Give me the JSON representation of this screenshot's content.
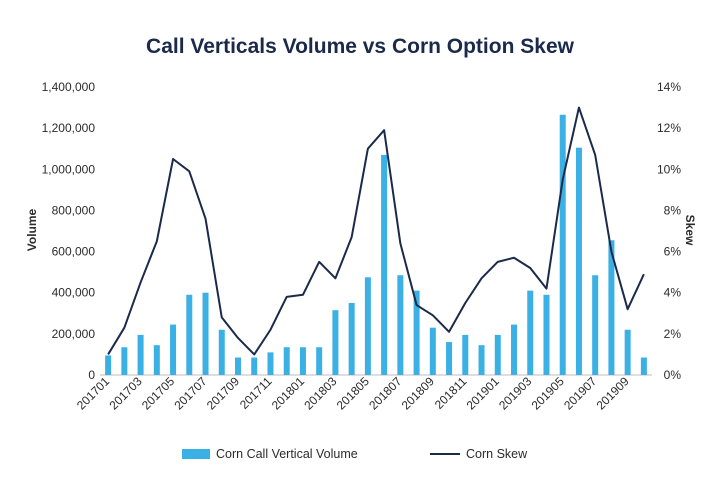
{
  "chart_data": {
    "type": "bar",
    "title": "Call Verticals Volume vs Corn Option Skew",
    "ylabel": "Volume",
    "y2label": "Skew",
    "ylim": [
      0,
      1400000
    ],
    "y2lim": [
      0,
      14
    ],
    "y_ticks": [
      "0",
      "200,000",
      "400,000",
      "600,000",
      "800,000",
      "1,000,000",
      "1,200,000",
      "1,400,000"
    ],
    "y2_ticks": [
      "0%",
      "2%",
      "4%",
      "6%",
      "8%",
      "10%",
      "12%",
      "14%"
    ],
    "x_tick_labels": [
      "201701",
      "201703",
      "201705",
      "201707",
      "201709",
      "201711",
      "201801",
      "201803",
      "201805",
      "201807",
      "201809",
      "201811",
      "201901",
      "201903",
      "201905",
      "201907",
      "201909"
    ],
    "categories": [
      "201701",
      "201702",
      "201703",
      "201704",
      "201705",
      "201706",
      "201707",
      "201708",
      "201709",
      "201710",
      "201711",
      "201712",
      "201801",
      "201802",
      "201803",
      "201804",
      "201805",
      "201806",
      "201807",
      "201808",
      "201809",
      "201810",
      "201811",
      "201812",
      "201901",
      "201902",
      "201903",
      "201904",
      "201905",
      "201906",
      "201907",
      "201908",
      "201909",
      "201910"
    ],
    "series": [
      {
        "name": "Corn Call Vertical Volume",
        "type": "bar",
        "axis": "left",
        "values": [
          95000,
          135000,
          195000,
          145000,
          245000,
          390000,
          400000,
          220000,
          85000,
          85000,
          110000,
          135000,
          135000,
          135000,
          315000,
          350000,
          475000,
          1070000,
          485000,
          410000,
          230000,
          160000,
          195000,
          145000,
          195000,
          245000,
          410000,
          390000,
          1265000,
          1105000,
          485000,
          655000,
          220000,
          85000
        ]
      },
      {
        "name": "Corn Skew",
        "type": "line",
        "axis": "right",
        "values": [
          1.0,
          2.3,
          4.5,
          6.5,
          10.5,
          9.9,
          7.6,
          2.8,
          1.8,
          1.0,
          2.2,
          3.8,
          3.9,
          5.5,
          4.7,
          6.7,
          11.0,
          11.9,
          6.4,
          3.4,
          2.9,
          2.1,
          3.5,
          4.7,
          5.5,
          5.7,
          5.2,
          4.2,
          9.5,
          13.0,
          10.7,
          6.0,
          3.2,
          4.9
        ]
      }
    ],
    "legend_position": "bottom",
    "grid": false
  },
  "colors": {
    "bar": "#3bb0e4",
    "line": "#1b2a4a",
    "title": "#1b2a4a",
    "text": "#2b2b2b"
  }
}
